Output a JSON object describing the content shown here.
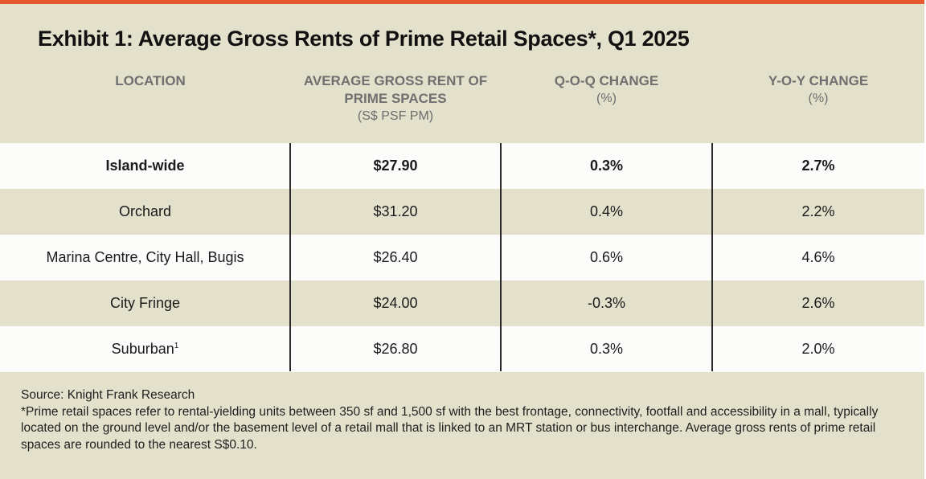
{
  "exhibit": {
    "title": "Exhibit 1: Average Gross Rents of Prime Retail Spaces*, Q1 2025",
    "accent_color": "#e8572f",
    "background_color": "#e3e1cc"
  },
  "table": {
    "headers": [
      {
        "main": "LOCATION",
        "sub": ""
      },
      {
        "main": "AVERAGE GROSS RENT OF PRIME SPACES",
        "sub": "(S$ PSF PM)"
      },
      {
        "main": "Q-O-Q CHANGE",
        "sub": "(%)"
      },
      {
        "main": "Y-O-Y CHANGE",
        "sub": "(%)"
      }
    ],
    "rows": [
      {
        "location": "Island-wide",
        "location_note": "",
        "rent": "$27.90",
        "qoq": "0.3%",
        "yoy": "2.7%"
      },
      {
        "location": "Orchard",
        "location_note": "",
        "rent": "$31.20",
        "qoq": "0.4%",
        "yoy": "2.2%"
      },
      {
        "location": "Marina Centre, City Hall, Bugis",
        "location_note": "",
        "rent": "$26.40",
        "qoq": "0.6%",
        "yoy": "4.6%"
      },
      {
        "location": "City Fringe",
        "location_note": "",
        "rent": "$24.00",
        "qoq": "-0.3%",
        "yoy": "2.6%"
      },
      {
        "location": "Suburban",
        "location_note": "1",
        "rent": "$26.80",
        "qoq": "0.3%",
        "yoy": "2.0%"
      }
    ]
  },
  "notes": {
    "source": "Source: Knight Frank Research",
    "footnote": "*Prime retail spaces refer to rental-yielding units between 350 sf and 1,500 sf with the best frontage, connectivity, footfall and accessibility in a mall, typically located on the ground level and/or the basement level of a retail mall that is linked to an MRT station or bus interchange. Average gross rents of prime retail spaces are rounded to the nearest S$0.10."
  }
}
